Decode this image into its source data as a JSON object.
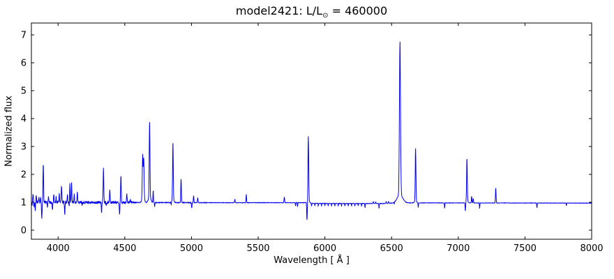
{
  "figure": {
    "title_prefix": "model2421: L/L",
    "title_odot": "⊙",
    "title_suffix": " = 460000"
  },
  "chart_data": {
    "type": "line",
    "title": "model2421: L/L⊙ = 460000",
    "xlabel": "Wavelength [ Å ]",
    "ylabel": "Normalized flux",
    "xlim": [
      3800,
      8000
    ],
    "ylim": [
      -0.325,
      7.425
    ],
    "xticks": [
      4000,
      4500,
      5000,
      5500,
      6000,
      6500,
      7000,
      7500,
      8000
    ],
    "yticks": [
      0,
      1,
      2,
      3,
      4,
      5,
      6,
      7
    ],
    "grid": false,
    "legend": null,
    "line_color": "#0000EE",
    "axis_color": "#000000",
    "continuum_level": 1.0,
    "line_format": [
      "wavelength_A",
      "flux_at_line_center",
      "sigma_A"
    ],
    "emission_lines": [
      [
        3812,
        1.32,
        2.0
      ],
      [
        3836,
        1.22,
        2.0
      ],
      [
        3856,
        1.15,
        2.0
      ],
      [
        3869,
        1.12,
        2.0
      ],
      [
        3889,
        2.38,
        2.2
      ],
      [
        3928,
        1.2,
        2.0
      ],
      [
        3968,
        1.28,
        2.0
      ],
      [
        3985,
        1.18,
        2.0
      ],
      [
        4009,
        1.32,
        2.0
      ],
      [
        4026,
        1.58,
        2.2
      ],
      [
        4070,
        1.28,
        2.0
      ],
      [
        4088,
        1.78,
        2.2
      ],
      [
        4101,
        1.75,
        2.2
      ],
      [
        4121,
        1.28,
        2.0
      ],
      [
        4144,
        1.38,
        2.2
      ],
      [
        4340,
        2.2,
        2.5
      ],
      [
        4388,
        1.48,
        2.2
      ],
      [
        4471,
        2.0,
        2.2
      ],
      [
        4515,
        1.32,
        2.2
      ],
      [
        4542,
        1.1,
        2.0
      ],
      [
        4634,
        2.5,
        2.8
      ],
      [
        4642,
        2.35,
        2.8
      ],
      [
        4638,
        1.25,
        8.0
      ],
      [
        4686,
        3.7,
        2.6
      ],
      [
        4686,
        1.22,
        9.0
      ],
      [
        4713,
        1.45,
        1.8
      ],
      [
        4861,
        3.07,
        2.6
      ],
      [
        4861,
        1.1,
        8.0
      ],
      [
        4922,
        1.85,
        2.2
      ],
      [
        5016,
        1.26,
        2.0
      ],
      [
        5047,
        1.18,
        2.0
      ],
      [
        5325,
        1.12,
        2.2
      ],
      [
        5411,
        1.3,
        1.8
      ],
      [
        5696,
        1.2,
        2.2
      ],
      [
        5876,
        3.3,
        2.6
      ],
      [
        5876,
        1.1,
        9.0
      ],
      [
        6363,
        1.07,
        2.2
      ],
      [
        6380,
        1.05,
        2.2
      ],
      [
        6460,
        1.07,
        2.2
      ],
      [
        6478,
        1.06,
        2.2
      ],
      [
        6563,
        6.48,
        4.0
      ],
      [
        6563,
        1.3,
        20.0
      ],
      [
        6680,
        2.89,
        2.6
      ],
      [
        6680,
        1.06,
        8.0
      ],
      [
        7065,
        2.54,
        2.6
      ],
      [
        7065,
        1.06,
        8.0
      ],
      [
        7100,
        1.24,
        2.0
      ],
      [
        7112,
        1.16,
        2.0
      ],
      [
        7281,
        1.55,
        2.2
      ]
    ],
    "absorption_lines": [
      [
        3805,
        0.85,
        1.8
      ],
      [
        3820,
        0.8,
        1.5
      ],
      [
        3829,
        0.72,
        1.8
      ],
      [
        3878,
        0.4,
        2.0
      ],
      [
        3920,
        0.8,
        1.8
      ],
      [
        3958,
        0.72,
        1.8
      ],
      [
        4050,
        0.58,
        1.8
      ],
      [
        4085,
        0.65,
        1.8
      ],
      [
        4180,
        0.9,
        1.5
      ],
      [
        4326,
        0.63,
        1.8
      ],
      [
        4360,
        0.85,
        1.5
      ],
      [
        4461,
        0.55,
        1.8
      ],
      [
        4724,
        0.85,
        1.5
      ],
      [
        4848,
        0.9,
        1.5
      ],
      [
        5002,
        0.8,
        1.8
      ],
      [
        5780,
        0.88,
        1.5
      ],
      [
        5795,
        0.86,
        1.5
      ],
      [
        5866,
        0.32,
        2.2
      ],
      [
        5900,
        0.9,
        1.2
      ],
      [
        5925,
        0.9,
        1.2
      ],
      [
        5950,
        0.9,
        1.2
      ],
      [
        5975,
        0.9,
        1.2
      ],
      [
        6000,
        0.9,
        1.2
      ],
      [
        6025,
        0.9,
        1.2
      ],
      [
        6050,
        0.9,
        1.2
      ],
      [
        6075,
        0.9,
        1.2
      ],
      [
        6100,
        0.9,
        1.2
      ],
      [
        6125,
        0.9,
        1.2
      ],
      [
        6150,
        0.9,
        1.2
      ],
      [
        6175,
        0.9,
        1.2
      ],
      [
        6200,
        0.9,
        1.2
      ],
      [
        6225,
        0.9,
        1.2
      ],
      [
        6250,
        0.9,
        1.2
      ],
      [
        6275,
        0.9,
        1.2
      ],
      [
        6301,
        0.84,
        1.5
      ],
      [
        6406,
        0.82,
        1.5
      ],
      [
        6520,
        0.93,
        1.5
      ],
      [
        6700,
        0.82,
        1.5
      ],
      [
        6898,
        0.8,
        1.5
      ],
      [
        7053,
        0.68,
        2.0
      ],
      [
        7160,
        0.8,
        1.5
      ],
      [
        7590,
        0.82,
        1.5
      ],
      [
        7810,
        0.9,
        1.2
      ]
    ],
    "baseline_segments": [
      [
        3800,
        1.0
      ],
      [
        5060,
        0.985
      ],
      [
        5860,
        0.985
      ],
      [
        5890,
        0.96
      ],
      [
        6450,
        0.955
      ],
      [
        6540,
        0.98
      ],
      [
        8000,
        0.97
      ]
    ],
    "noise_amplitude_segments": [
      [
        3800,
        0.05
      ],
      [
        4540,
        0.045
      ],
      [
        4580,
        0.012
      ],
      [
        5050,
        0.012
      ],
      [
        5100,
        0.008
      ],
      [
        8000,
        0.006
      ]
    ]
  }
}
